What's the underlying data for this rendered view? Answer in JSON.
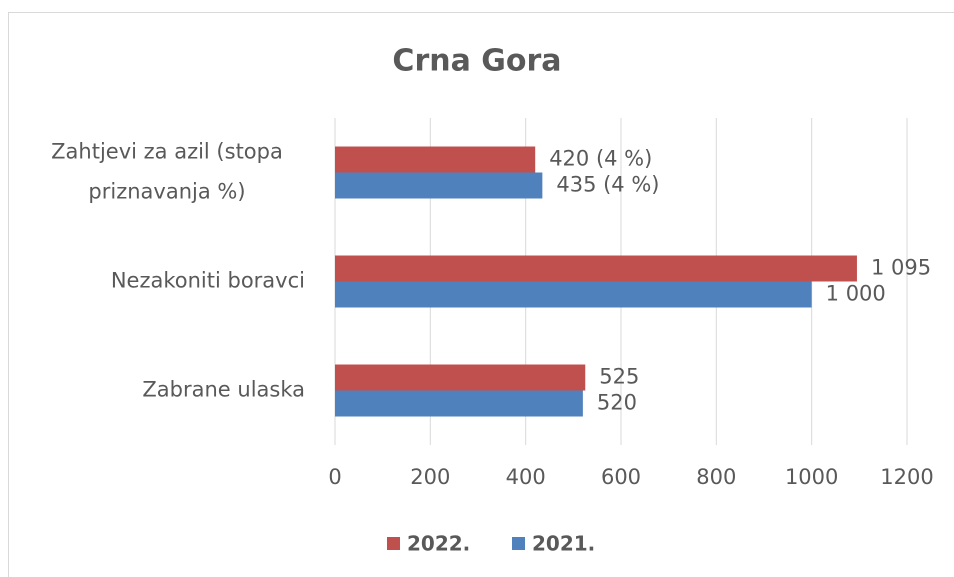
{
  "chart_data": {
    "type": "bar",
    "orientation": "horizontal",
    "title": "Crna Gora",
    "categories": [
      "Zahtjevi za azil (stopa priznavanja %)",
      "Nezakoniti boravci",
      "Zabrane ulaska"
    ],
    "series": [
      {
        "name": "2022.",
        "color": "#c0504d",
        "values": [
          420,
          1095,
          525
        ],
        "value_labels": [
          "420 (4 %)",
          "1 095",
          "525"
        ]
      },
      {
        "name": "2021.",
        "color": "#4f81bd",
        "values": [
          435,
          1000,
          520
        ],
        "value_labels": [
          "435 (4 %)",
          "1 000",
          "520"
        ]
      }
    ],
    "xlim": [
      0,
      1200
    ],
    "xticks": [
      0,
      200,
      400,
      600,
      800,
      1000,
      1200
    ],
    "grid": true,
    "legend": "bottom"
  }
}
